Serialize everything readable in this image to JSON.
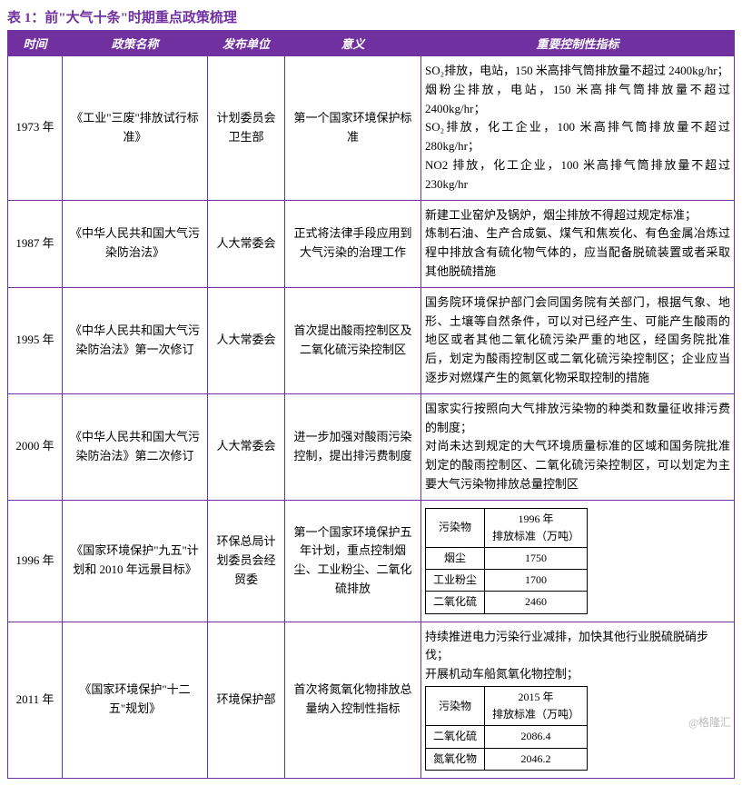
{
  "title": "表 1：前\"大气十条\"时期重点政策梳理",
  "columns": [
    "时间",
    "政策名称",
    "发布单位",
    "意义",
    "重要控制性指标"
  ],
  "rows": [
    {
      "time": "1973 年",
      "name": "《工业\"三废\"排放试行标准》",
      "issuer": "计划委员会卫生部",
      "meaning": "第一个国家环境保护标准",
      "indicator": "SO₂排放，电站，150 米高排气筒排放量不超过 2400kg/hr；\n烟粉尘排放，电站，150 米高排气筒排放量不超过 2400kg/hr；\nSO₂排放，化工企业，100 米高排气筒排放量不超过 280kg/hr；\nNO2 排放，化工企业，100 米高排气筒排放量不超过 230kg/hr"
    },
    {
      "time": "1987 年",
      "name": "《中华人民共和国大气污染防治法》",
      "issuer": "人大常委会",
      "meaning": "正式将法律手段应用到大气污染的治理工作",
      "indicator": "新建工业窑炉及锅炉，烟尘排放不得超过规定标准；\n炼制石油、生产合成氨、煤气和焦炭化、有色金属冶炼过程中排放含有硫化物气体的，应当配备脱硫装置或者采取其他脱硫措施"
    },
    {
      "time": "1995 年",
      "name": "《中华人民共和国大气污染防治法》第一次修订",
      "issuer": "人大常委会",
      "meaning": "首次提出酸雨控制区及二氧化硫污染控制区",
      "indicator": "国务院环境保护部门会同国务院有关部门，根据气象、地形、土壤等自然条件，可以对已经产生、可能产生酸雨的地区或者其他二氧化硫污染严重的地区，经国务院批准后，划定为酸雨控制区或二氧化硫污染控制区；企业应当逐步对燃煤产生的氮氧化物采取控制的措施"
    },
    {
      "time": "2000 年",
      "name": "《中华人民共和国大气污染防治法》第二次修订",
      "issuer": "人大常委会",
      "meaning": "进一步加强对酸雨污染控制，提出排污费制度",
      "indicator": "国家实行按照向大气排放污染物的种类和数量征收排污费的制度；\n对尚未达到规定的大气环境质量标准的区域和国务院批准划定的酸雨控制区、二氧化硫污染控制区，可以划定为主要大气污染物排放总量控制区"
    },
    {
      "time": "1996 年",
      "name": "《国家环境保护\"九五\"计划和 2010 年远景目标》",
      "issuer": "环保总局计划委员会经贸委",
      "meaning": "第一个国家环境保护五年计划，重点控制烟尘、工业粉尘、二氧化硫排放",
      "indicator_table": {
        "header": [
          "污染物",
          "1996 年\n排放标准（万吨）"
        ],
        "rows": [
          [
            "烟尘",
            "1750"
          ],
          [
            "工业粉尘",
            "1700"
          ],
          [
            "二氧化硫",
            "2460"
          ]
        ]
      }
    },
    {
      "time": "2011 年",
      "name": "《国家环境保护\"十二五\"规划》",
      "issuer": "环境保护部",
      "meaning": "首次将氮氧化物排放总量纳入控制性指标",
      "indicator_pre": "持续推进电力污染行业减排，加快其他行业脱硫脱硝步伐；\n开展机动车船氮氧化物控制；",
      "indicator_table": {
        "header": [
          "污染物",
          "2015 年\n排放标准（万吨）"
        ],
        "rows": [
          [
            "二氧化硫",
            "2086.4"
          ],
          [
            "氮氧化物",
            "2046.2"
          ]
        ]
      }
    }
  ],
  "watermark": "@格隆汇"
}
